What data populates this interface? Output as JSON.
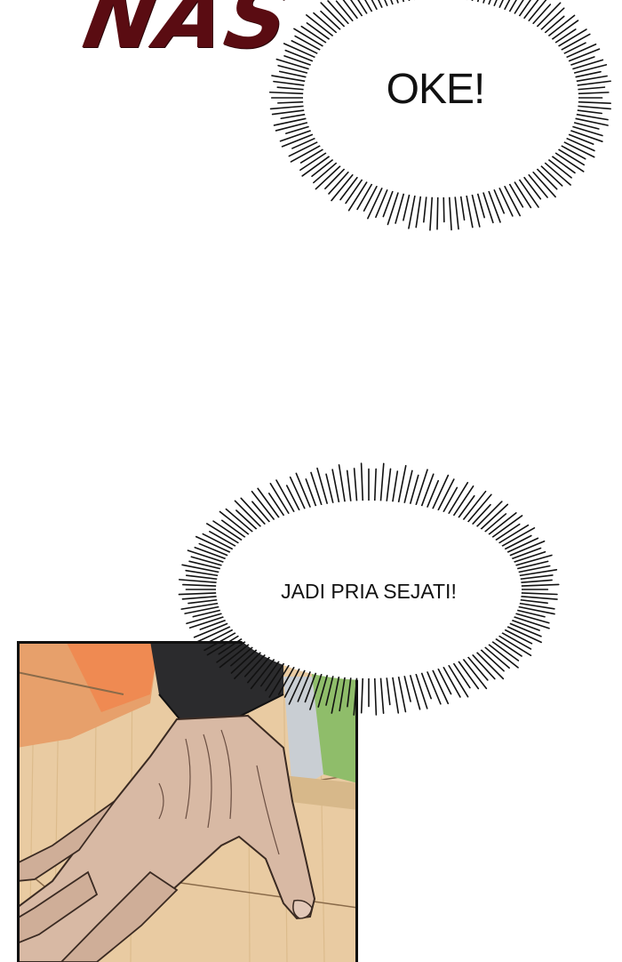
{
  "sfx_text": "NAS",
  "bubbles": {
    "oke": "OKE!",
    "jadi": "JADI PRIA SEJATI!"
  },
  "colors": {
    "sfx": "#5a0c12",
    "background": "#ffffff",
    "bubble_outline": "#111111",
    "panel_floor": "#e8caa0",
    "panel_orange": "#e89a62",
    "panel_green": "#8fbd6a",
    "skin": "#d8b9a4",
    "sleeve": "#2b2b2d"
  }
}
